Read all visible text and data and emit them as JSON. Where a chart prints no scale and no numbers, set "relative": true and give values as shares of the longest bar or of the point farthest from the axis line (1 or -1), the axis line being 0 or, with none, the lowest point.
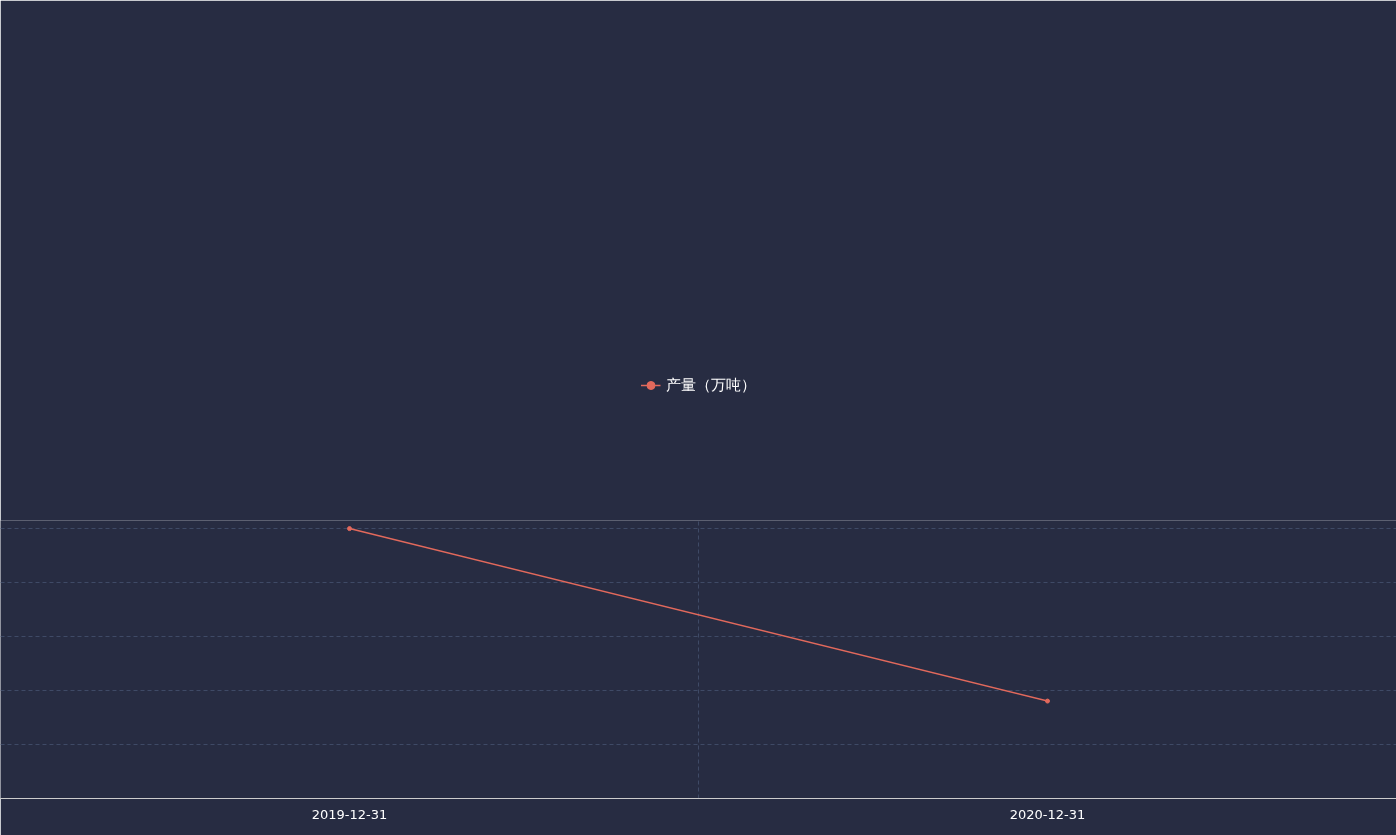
{
  "chart_data": {
    "type": "line",
    "relative": true,
    "categories": [
      "2019-12-31",
      "2020-12-31"
    ],
    "series": [
      {
        "name": "产量（万吨）",
        "color": "#e2695c",
        "values": [
          1,
          0.361
        ]
      }
    ],
    "legend": "top",
    "marker": "circle",
    "grid": true,
    "line_style": "solid"
  }
}
